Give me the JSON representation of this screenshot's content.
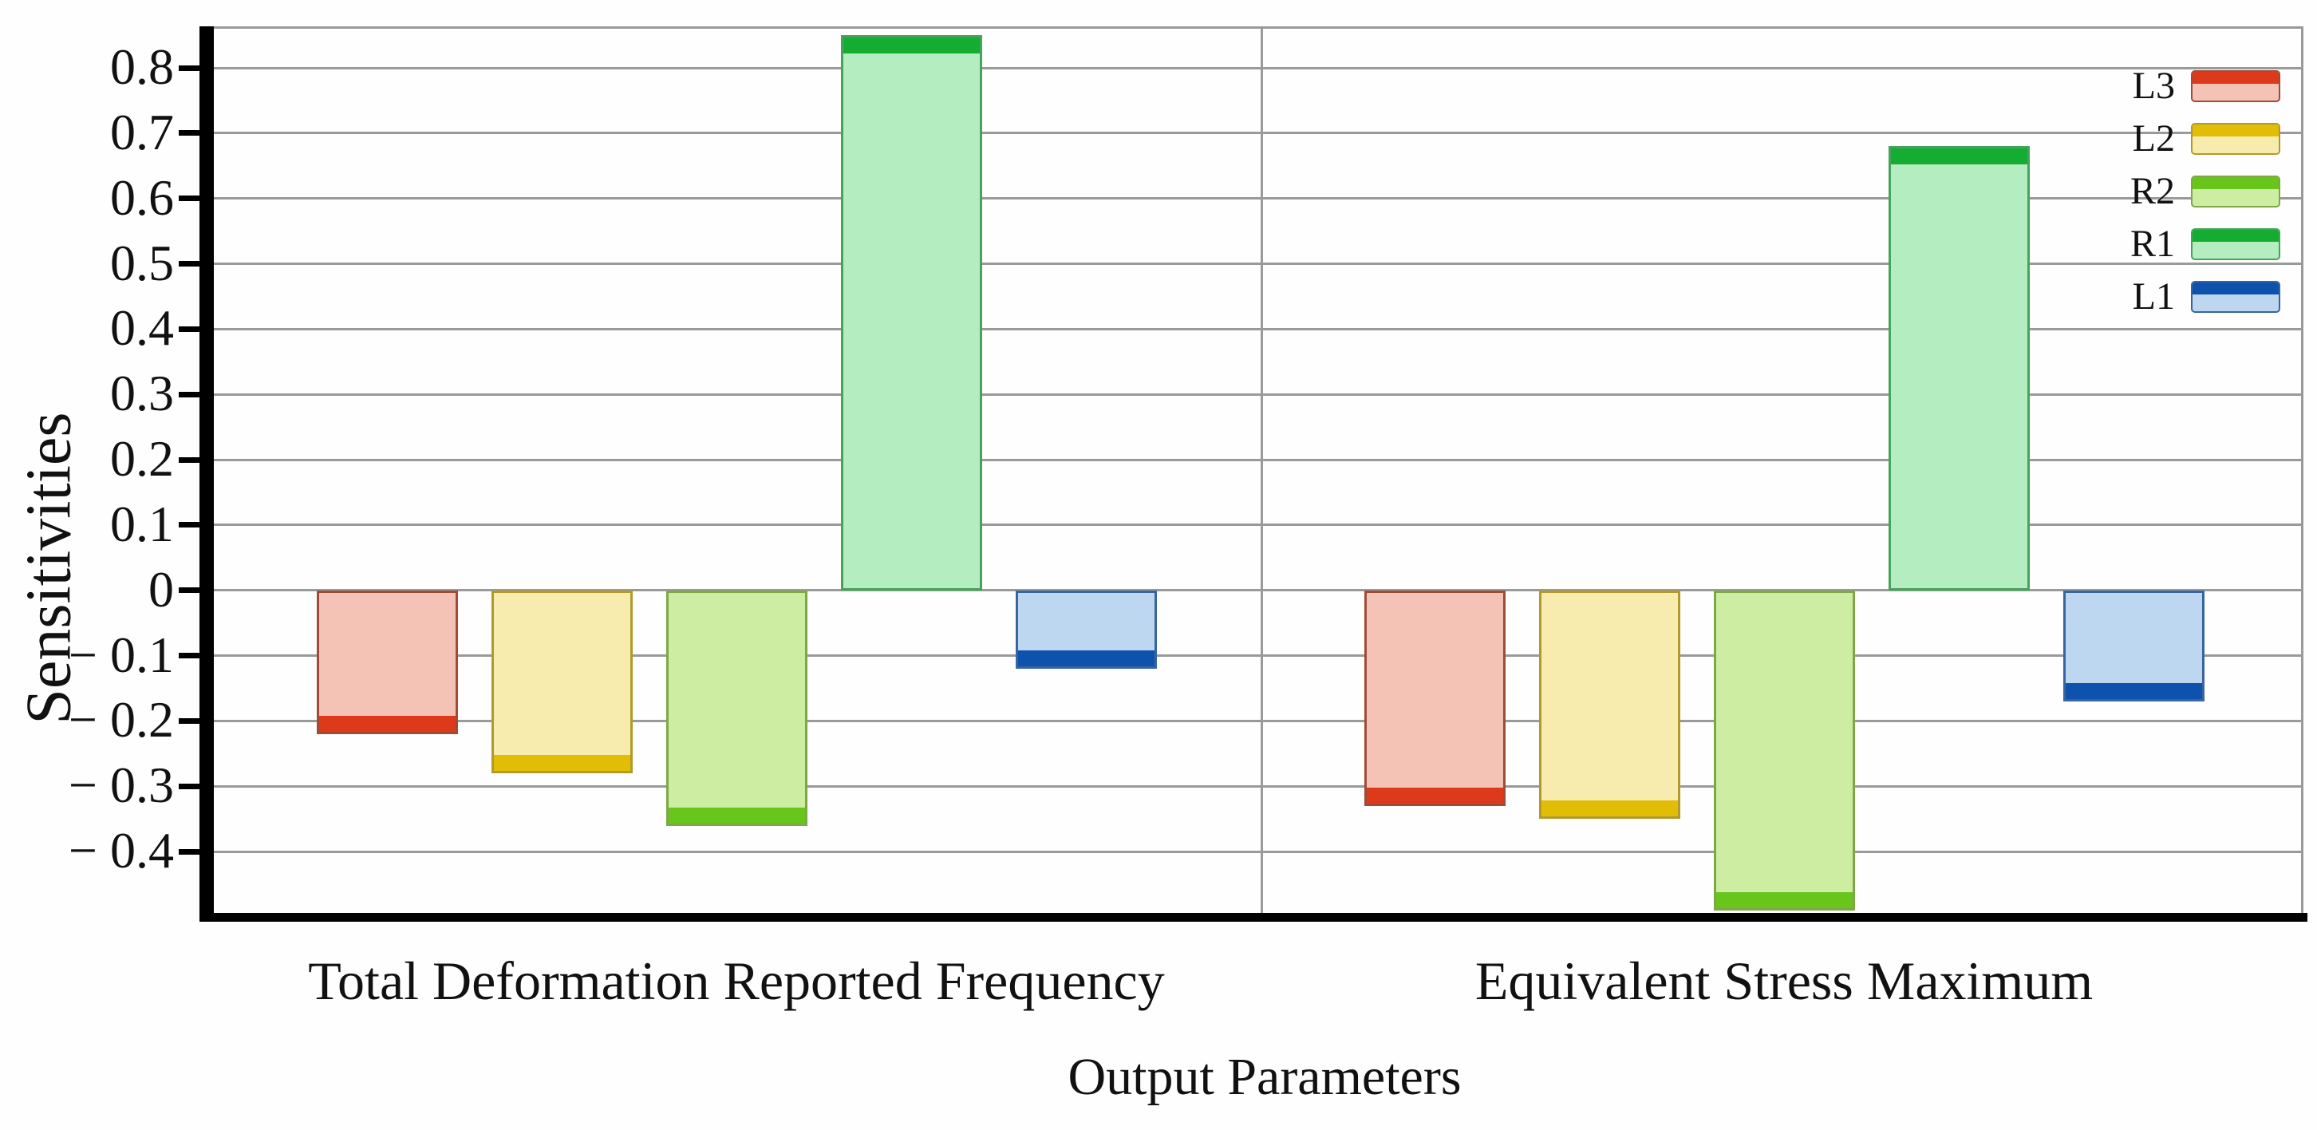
{
  "chart_data": {
    "type": "bar",
    "title": "",
    "xlabel": "Output Parameters",
    "ylabel": "Sensitivities",
    "categories": [
      "Total Deformation Reported Frequency",
      "Equivalent Stress Maximum"
    ],
    "series": [
      {
        "name": "L3",
        "values": [
          -0.22,
          -0.33
        ],
        "fill": "#f5c2b6",
        "edge": "#9e4c38",
        "cap": "#dd3a1b"
      },
      {
        "name": "L2",
        "values": [
          -0.28,
          -0.35
        ],
        "fill": "#f7ecae",
        "edge": "#b19a2c",
        "cap": "#e2bd06"
      },
      {
        "name": "R2",
        "values": [
          -0.36,
          -0.49
        ],
        "fill": "#cdeda3",
        "edge": "#7fa748",
        "cap": "#67c51b"
      },
      {
        "name": "R1",
        "values": [
          0.85,
          0.68
        ],
        "fill": "#b4edbf",
        "edge": "#47a35c",
        "cap": "#15ad31"
      },
      {
        "name": "L1",
        "values": [
          -0.12,
          -0.17
        ],
        "fill": "#bdd7f0",
        "edge": "#38659e",
        "cap": "#0d53ae"
      }
    ],
    "ylim": [
      -0.5,
      0.86
    ],
    "yticks": [
      0.8,
      0.7,
      0.6,
      0.5,
      0.4,
      0.3,
      0.2,
      0.1,
      0,
      -0.1,
      -0.2,
      -0.3,
      -0.4
    ],
    "ytick_labels": [
      "0.8",
      "0.7",
      "0.6",
      "0.5",
      "0.4",
      "0.3",
      "0.2",
      "0.1",
      "0",
      "− 0.1",
      "− 0.2",
      "− 0.3",
      "− 0.4"
    ],
    "grid": true,
    "gridline_color": "#9a9a9a",
    "axis_color": "#000000",
    "legend_position": "top-right"
  }
}
